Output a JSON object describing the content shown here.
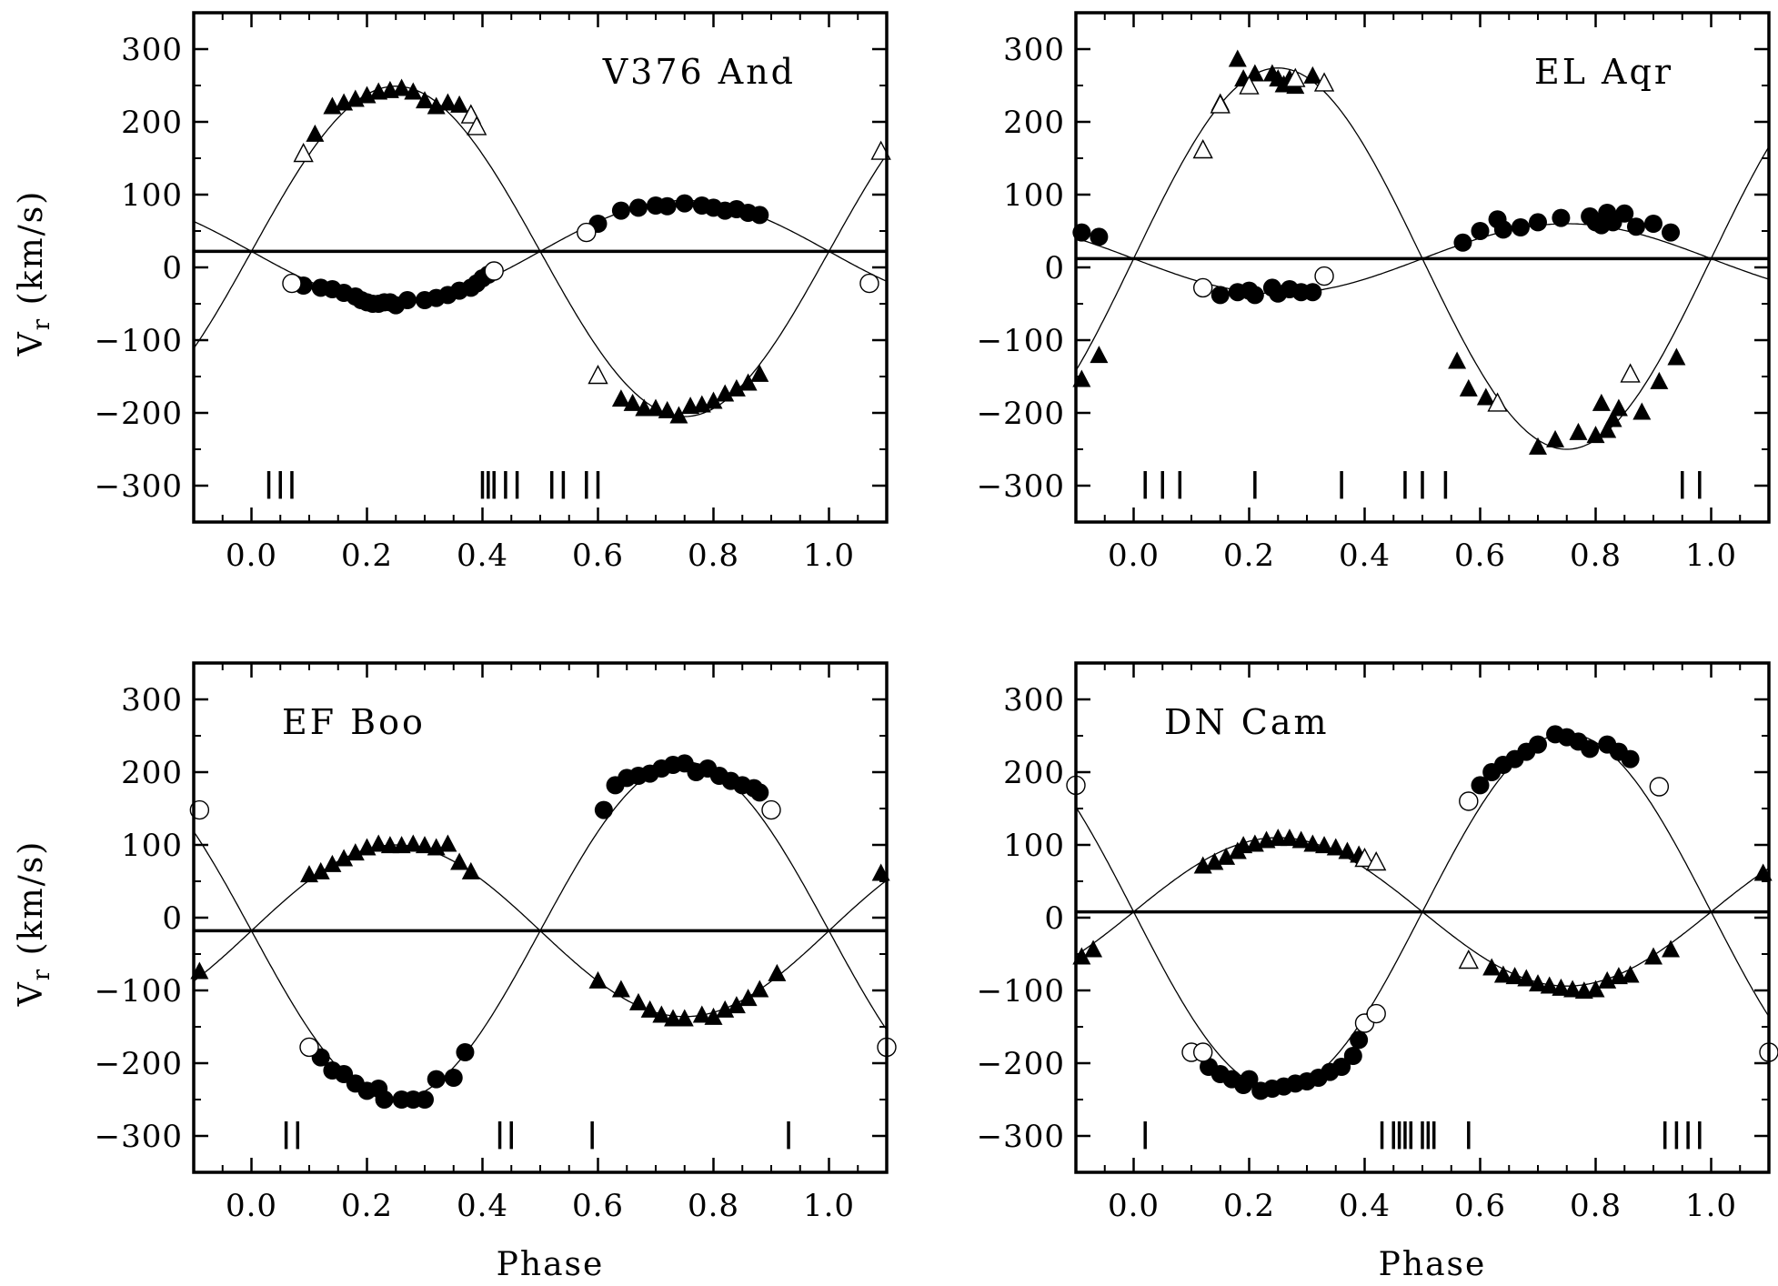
{
  "figure": {
    "xlabel": "Phase",
    "ylabel_main": "V",
    "ylabel_sub": "r",
    "ylabel_rest": " (km/s)"
  },
  "chart_data": [
    {
      "type": "scatter",
      "title": "V376 And",
      "xlim": [
        -0.1,
        1.1
      ],
      "ylim": [
        -350,
        350
      ],
      "xticks": [
        0.0,
        0.2,
        0.4,
        0.6,
        0.8,
        1.0
      ],
      "xtick_labels": [
        "0.0",
        "0.2",
        "0.4",
        "0.6",
        "0.8",
        "1.0"
      ],
      "yticks": [
        300,
        200,
        100,
        0,
        -100,
        -200,
        -300
      ],
      "ytick_labels": [
        "300",
        "200",
        "100",
        "0",
        "−100",
        "−200",
        "−300"
      ],
      "gamma": 22,
      "fit_primary": {
        "name": "primary (circles)",
        "amplitude": 70,
        "zero_phase": 0.0
      },
      "fit_secondary": {
        "name": "secondary (triangles)",
        "amplitude": 227,
        "zero_phase": 0.0
      },
      "series": [
        {
          "name": "primary filled circles",
          "marker": "filled-circle",
          "x": [
            0.09,
            0.12,
            0.14,
            0.16,
            0.18,
            0.19,
            0.2,
            0.21,
            0.22,
            0.23,
            0.24,
            0.25,
            0.27,
            0.3,
            0.32,
            0.34,
            0.36,
            0.38,
            0.39,
            0.4,
            0.41,
            0.58,
            0.6,
            0.64,
            0.67,
            0.7,
            0.72,
            0.75,
            0.78,
            0.8,
            0.82,
            0.84,
            0.86,
            0.88
          ],
          "y": [
            -25,
            -28,
            -30,
            -35,
            -40,
            -45,
            -48,
            -50,
            -50,
            -48,
            -48,
            -52,
            -45,
            -45,
            -42,
            -38,
            -32,
            -28,
            -22,
            -15,
            -10,
            48,
            60,
            78,
            82,
            85,
            84,
            88,
            85,
            82,
            78,
            80,
            75,
            72
          ]
        },
        {
          "name": "primary open circles",
          "marker": "open-circle",
          "x": [
            0.07,
            0.42,
            0.58,
            1.07
          ],
          "y": [
            -22,
            -5,
            48,
            -22
          ]
        },
        {
          "name": "secondary filled triangles",
          "marker": "filled-triangle",
          "x": [
            0.11,
            0.14,
            0.16,
            0.18,
            0.2,
            0.22,
            0.24,
            0.26,
            0.28,
            0.3,
            0.32,
            0.34,
            0.36,
            0.38,
            0.64,
            0.66,
            0.68,
            0.7,
            0.72,
            0.74,
            0.76,
            0.78,
            0.8,
            0.82,
            0.84,
            0.86,
            0.88
          ],
          "y": [
            182,
            220,
            225,
            230,
            235,
            240,
            242,
            245,
            240,
            228,
            220,
            225,
            222,
            210,
            -182,
            -188,
            -195,
            -195,
            -198,
            -205,
            -192,
            -190,
            -185,
            -175,
            -168,
            -160,
            -148
          ]
        },
        {
          "name": "secondary open triangles",
          "marker": "open-triangle",
          "x": [
            0.09,
            0.38,
            0.39,
            0.6,
            1.09
          ],
          "y": [
            155,
            208,
            192,
            -150,
            158
          ]
        }
      ],
      "phase_ticks": [
        0.03,
        0.05,
        0.07,
        0.4,
        0.41,
        0.42,
        0.44,
        0.46,
        0.52,
        0.54,
        0.58,
        0.6
      ]
    },
    {
      "type": "scatter",
      "title": "EL Aqr",
      "xlim": [
        -0.1,
        1.1
      ],
      "ylim": [
        -350,
        350
      ],
      "xticks": [
        0.0,
        0.2,
        0.4,
        0.6,
        0.8,
        1.0
      ],
      "xtick_labels": [
        "0.0",
        "0.2",
        "0.4",
        "0.6",
        "0.8",
        "1.0"
      ],
      "yticks": [
        300,
        200,
        100,
        0,
        -100,
        -200,
        -300
      ],
      "ytick_labels": [
        "300",
        "200",
        "100",
        "0",
        "−100",
        "−200",
        "−300"
      ],
      "gamma": 12,
      "fit_primary": {
        "name": "primary (circles)",
        "amplitude": 48,
        "zero_phase": 0.0
      },
      "fit_secondary": {
        "name": "secondary (triangles)",
        "amplitude": 262,
        "zero_phase": 0.0
      },
      "series": [
        {
          "name": "primary filled circles",
          "marker": "filled-circle",
          "x": [
            -0.09,
            -0.06,
            0.15,
            0.18,
            0.2,
            0.21,
            0.24,
            0.25,
            0.27,
            0.29,
            0.31,
            0.57,
            0.6,
            0.63,
            0.64,
            0.67,
            0.7,
            0.74,
            0.79,
            0.8,
            0.81,
            0.82,
            0.83,
            0.85,
            0.87,
            0.9,
            0.93
          ],
          "y": [
            48,
            42,
            -38,
            -34,
            -32,
            -38,
            -28,
            -36,
            -30,
            -34,
            -34,
            34,
            50,
            66,
            52,
            55,
            62,
            68,
            70,
            62,
            58,
            75,
            62,
            74,
            56,
            60,
            48
          ]
        },
        {
          "name": "primary open circles",
          "marker": "open-circle",
          "x": [
            0.12,
            0.33
          ],
          "y": [
            -28,
            -12
          ]
        },
        {
          "name": "secondary filled triangles",
          "marker": "filled-triangle",
          "x": [
            -0.09,
            -0.06,
            0.15,
            0.18,
            0.19,
            0.21,
            0.24,
            0.25,
            0.26,
            0.27,
            0.28,
            0.31,
            0.56,
            0.58,
            0.61,
            0.63,
            0.7,
            0.73,
            0.77,
            0.8,
            0.81,
            0.82,
            0.83,
            0.84,
            0.88,
            0.91,
            0.94
          ],
          "y": [
            -155,
            -122,
            225,
            285,
            258,
            265,
            265,
            258,
            250,
            258,
            248,
            262,
            -130,
            -168,
            -180,
            -188,
            -248,
            -238,
            -228,
            -232,
            -188,
            -225,
            -210,
            -195,
            -200,
            -158,
            -125
          ]
        },
        {
          "name": "secondary open triangles",
          "marker": "open-triangle",
          "x": [
            0.12,
            0.15,
            0.2,
            0.28,
            0.33,
            0.63,
            0.86
          ],
          "y": [
            160,
            222,
            248,
            258,
            252,
            -188,
            -148
          ]
        }
      ],
      "phase_ticks": [
        0.02,
        0.05,
        0.08,
        0.21,
        0.36,
        0.47,
        0.5,
        0.54,
        0.95,
        0.98
      ]
    },
    {
      "type": "scatter",
      "title": "EF Boo",
      "xlim": [
        -0.1,
        1.1
      ],
      "ylim": [
        -350,
        350
      ],
      "xticks": [
        0.0,
        0.2,
        0.4,
        0.6,
        0.8,
        1.0
      ],
      "xtick_labels": [
        "0.0",
        "0.2",
        "0.4",
        "0.6",
        "0.8",
        "1.0"
      ],
      "yticks": [
        300,
        200,
        100,
        0,
        -100,
        -200,
        -300
      ],
      "ytick_labels": [
        "300",
        "200",
        "100",
        "0",
        "−100",
        "−200",
        "−300"
      ],
      "gamma": -18,
      "fit_primary": {
        "name": "primary (triangles)",
        "amplitude": 118,
        "zero_phase": 0.0
      },
      "fit_secondary": {
        "name": "secondary (circles)",
        "amplitude": 232,
        "zero_phase": 0.0
      },
      "series": [
        {
          "name": "filled circles",
          "marker": "filled-circle",
          "x": [
            0.12,
            0.14,
            0.16,
            0.18,
            0.2,
            0.22,
            0.23,
            0.26,
            0.28,
            0.3,
            0.32,
            0.35,
            0.37,
            0.61,
            0.63,
            0.65,
            0.67,
            0.69,
            0.71,
            0.73,
            0.75,
            0.77,
            0.79,
            0.81,
            0.83,
            0.85,
            0.87,
            0.88
          ],
          "y": [
            -192,
            -210,
            -215,
            -228,
            -238,
            -235,
            -250,
            -250,
            -250,
            -250,
            -222,
            -220,
            -185,
            148,
            182,
            192,
            195,
            198,
            205,
            210,
            212,
            200,
            205,
            195,
            188,
            182,
            178,
            172
          ]
        },
        {
          "name": "open circles",
          "marker": "open-circle",
          "x": [
            -0.09,
            0.1,
            0.9,
            1.1
          ],
          "y": [
            148,
            -178,
            148,
            -178
          ]
        },
        {
          "name": "filled triangles",
          "marker": "filled-triangle",
          "x": [
            -0.09,
            0.1,
            0.12,
            0.14,
            0.16,
            0.18,
            0.2,
            0.22,
            0.24,
            0.26,
            0.28,
            0.3,
            0.32,
            0.34,
            0.36,
            0.38,
            0.6,
            0.64,
            0.67,
            0.69,
            0.71,
            0.73,
            0.75,
            0.78,
            0.8,
            0.82,
            0.84,
            0.86,
            0.88,
            0.91,
            1.09
          ],
          "y": [
            -75,
            58,
            62,
            72,
            80,
            88,
            95,
            100,
            98,
            98,
            100,
            98,
            95,
            100,
            75,
            62,
            -88,
            -100,
            -118,
            -128,
            -135,
            -140,
            -140,
            -135,
            -138,
            -128,
            -122,
            -112,
            -100,
            -78,
            60
          ]
        }
      ],
      "phase_ticks": [
        0.06,
        0.08,
        0.43,
        0.45,
        0.59,
        0.93
      ]
    },
    {
      "type": "scatter",
      "title": "DN Cam",
      "xlim": [
        -0.1,
        1.1
      ],
      "ylim": [
        -350,
        350
      ],
      "xticks": [
        0.0,
        0.2,
        0.4,
        0.6,
        0.8,
        1.0
      ],
      "xtick_labels": [
        "0.0",
        "0.2",
        "0.4",
        "0.6",
        "0.8",
        "1.0"
      ],
      "yticks": [
        300,
        200,
        100,
        0,
        -100,
        -200,
        -300
      ],
      "ytick_labels": [
        "300",
        "200",
        "100",
        "0",
        "−100",
        "−200",
        "−300"
      ],
      "gamma": 8,
      "fit_primary": {
        "name": "primary (triangles)",
        "amplitude": 102,
        "zero_phase": 0.0
      },
      "fit_secondary": {
        "name": "secondary (circles)",
        "amplitude": 245,
        "zero_phase": 0.0
      },
      "series": [
        {
          "name": "filled circles",
          "marker": "filled-circle",
          "x": [
            0.13,
            0.15,
            0.17,
            0.19,
            0.2,
            0.22,
            0.24,
            0.26,
            0.28,
            0.3,
            0.32,
            0.34,
            0.36,
            0.38,
            0.39,
            0.6,
            0.62,
            0.64,
            0.66,
            0.68,
            0.7,
            0.73,
            0.75,
            0.77,
            0.79,
            0.82,
            0.84,
            0.86
          ],
          "y": [
            -205,
            -215,
            -222,
            -230,
            -222,
            -238,
            -235,
            -232,
            -228,
            -225,
            -220,
            -212,
            -205,
            -190,
            -168,
            182,
            200,
            210,
            218,
            228,
            238,
            252,
            248,
            242,
            232,
            238,
            228,
            218
          ]
        },
        {
          "name": "open circles",
          "marker": "open-circle",
          "x": [
            -0.1,
            0.1,
            0.12,
            0.4,
            0.42,
            0.58,
            0.91,
            1.1
          ],
          "y": [
            182,
            -185,
            -185,
            -145,
            -132,
            160,
            180,
            -185
          ]
        },
        {
          "name": "filled triangles",
          "marker": "filled-triangle",
          "x": [
            -0.09,
            -0.07,
            0.12,
            0.14,
            0.16,
            0.18,
            0.19,
            0.21,
            0.23,
            0.25,
            0.27,
            0.29,
            0.31,
            0.33,
            0.35,
            0.37,
            0.39,
            0.62,
            0.64,
            0.66,
            0.68,
            0.7,
            0.72,
            0.74,
            0.76,
            0.78,
            0.8,
            0.82,
            0.84,
            0.86,
            0.9,
            0.93,
            1.09
          ],
          "y": [
            -55,
            -45,
            70,
            75,
            82,
            90,
            98,
            100,
            105,
            108,
            108,
            105,
            100,
            98,
            95,
            90,
            85,
            -70,
            -80,
            -82,
            -85,
            -92,
            -95,
            -98,
            -100,
            -102,
            -100,
            -88,
            -82,
            -80,
            -55,
            -45,
            60
          ]
        },
        {
          "name": "open triangles",
          "marker": "open-triangle",
          "x": [
            0.4,
            0.42,
            0.58
          ],
          "y": [
            80,
            75,
            -60
          ]
        }
      ],
      "phase_ticks": [
        0.02,
        0.43,
        0.45,
        0.46,
        0.47,
        0.48,
        0.5,
        0.51,
        0.52,
        0.58,
        0.92,
        0.94,
        0.96,
        0.98
      ]
    }
  ]
}
